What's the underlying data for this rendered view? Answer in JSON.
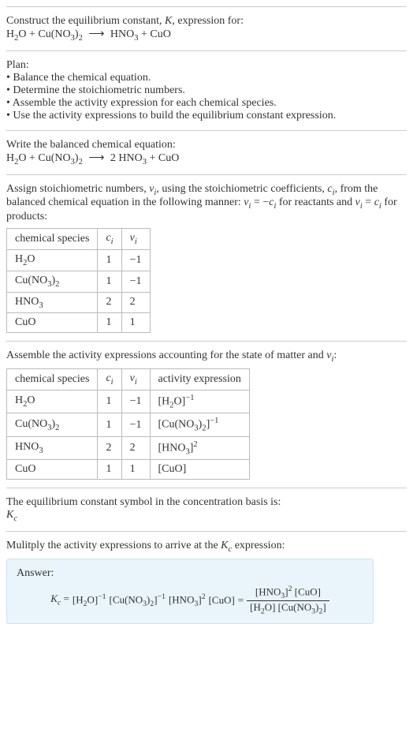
{
  "intro": {
    "line1": "Construct the equilibrium constant, ",
    "line1_k": "K",
    "line1_end": ", expression for:",
    "eq_lhs1": "H",
    "eq_lhs1_sub": "2",
    "eq_lhs1b": "O",
    "plus1": " + ",
    "eq_lhs2": "Cu(NO",
    "eq_lhs2_sub": "3",
    "eq_lhs2b": ")",
    "eq_lhs2_sub2": "2",
    "arrow": "⟶",
    "eq_rhs1": "HNO",
    "eq_rhs1_sub": "3",
    "plus2": " + ",
    "eq_rhs2": "CuO"
  },
  "plan": {
    "title": "Plan:",
    "b1": "• Balance the chemical equation.",
    "b2": "• Determine the stoichiometric numbers.",
    "b3": "• Assemble the activity expression for each chemical species.",
    "b4": "• Use the activity expressions to build the equilibrium constant expression."
  },
  "balanced": {
    "title": "Write the balanced chemical equation:",
    "lhs1": "H",
    "lhs1_sub": "2",
    "lhs1b": "O",
    "plus1": " + ",
    "lhs2": "Cu(NO",
    "lhs2_sub": "3",
    "lhs2b": ")",
    "lhs2_sub2": "2",
    "arrow": "⟶",
    "coef": "2 ",
    "rhs1": "HNO",
    "rhs1_sub": "3",
    "plus2": " + ",
    "rhs2": "CuO"
  },
  "stoich": {
    "text_a": "Assign stoichiometric numbers, ",
    "nu": "ν",
    "nu_sub": "i",
    "text_b": ", using the stoichiometric coefficients, ",
    "c": "c",
    "c_sub": "i",
    "text_c": ", from the balanced chemical equation in the following manner: ",
    "rel1a": "ν",
    "rel1a_sub": "i",
    "rel1b": " = −",
    "rel1c": "c",
    "rel1c_sub": "i",
    "text_d": " for reactants and ",
    "rel2a": "ν",
    "rel2a_sub": "i",
    "rel2b": " = ",
    "rel2c": "c",
    "rel2c_sub": "i",
    "text_e": " for products:",
    "h1": "chemical species",
    "h2": "c",
    "h2_sub": "i",
    "h3": "ν",
    "h3_sub": "i",
    "r1c1a": "H",
    "r1c1a_sub": "2",
    "r1c1b": "O",
    "r1c2": "1",
    "r1c3": "−1",
    "r2c1a": "Cu(NO",
    "r2c1a_sub": "3",
    "r2c1b": ")",
    "r2c1b_sub": "2",
    "r2c2": "1",
    "r2c3": "−1",
    "r3c1a": "HNO",
    "r3c1a_sub": "3",
    "r3c2": "2",
    "r3c3": "2",
    "r4c1": "CuO",
    "r4c2": "1",
    "r4c3": "1"
  },
  "activity": {
    "title_a": "Assemble the activity expressions accounting for the state of matter and ",
    "nu": "ν",
    "nu_sub": "i",
    "title_b": ":",
    "h1": "chemical species",
    "h2": "c",
    "h2_sub": "i",
    "h3": "ν",
    "h3_sub": "i",
    "h4": "activity expression",
    "r1c1a": "H",
    "r1c1a_sub": "2",
    "r1c1b": "O",
    "r1c2": "1",
    "r1c3": "−1",
    "r1c4a": "[H",
    "r1c4a_sub": "2",
    "r1c4b": "O]",
    "r1c4_sup": "−1",
    "r2c1a": "Cu(NO",
    "r2c1a_sub": "3",
    "r2c1b": ")",
    "r2c1b_sub": "2",
    "r2c2": "1",
    "r2c3": "−1",
    "r2c4a": "[Cu(NO",
    "r2c4a_sub": "3",
    "r2c4b": ")",
    "r2c4b_sub": "2",
    "r2c4c": "]",
    "r2c4_sup": "−1",
    "r3c1a": "HNO",
    "r3c1a_sub": "3",
    "r3c2": "2",
    "r3c3": "2",
    "r3c4a": "[HNO",
    "r3c4a_sub": "3",
    "r3c4b": "]",
    "r3c4_sup": "2",
    "r4c1": "CuO",
    "r4c2": "1",
    "r4c3": "1",
    "r4c4": "[CuO]"
  },
  "symbol": {
    "line1": "The equilibrium constant symbol in the concentration basis is:",
    "k": "K",
    "k_sub": "c"
  },
  "final": {
    "title_a": "Mulitply the activity expressions to arrive at the ",
    "k": "K",
    "k_sub": "c",
    "title_b": " expression:",
    "answer": "Answer:",
    "kc": "K",
    "kc_sub": "c",
    "eq": " = ",
    "t1a": "[H",
    "t1a_sub": "2",
    "t1b": "O]",
    "t1_sup": "−1",
    "t2a": "[Cu(NO",
    "t2a_sub": "3",
    "t2b": ")",
    "t2b_sub": "2",
    "t2c": "]",
    "t2_sup": "−1",
    "t3a": "[HNO",
    "t3a_sub": "3",
    "t3b": "]",
    "t3_sup": "2",
    "t4": "[CuO]",
    "eq2": " = ",
    "num_a": "[HNO",
    "num_a_sub": "3",
    "num_b": "]",
    "num_sup": "2",
    "num_c": " [CuO]",
    "den_a": "[H",
    "den_a_sub": "2",
    "den_b": "O] [Cu(NO",
    "den_b_sub": "3",
    "den_c": ")",
    "den_c_sub": "2",
    "den_d": "]"
  }
}
